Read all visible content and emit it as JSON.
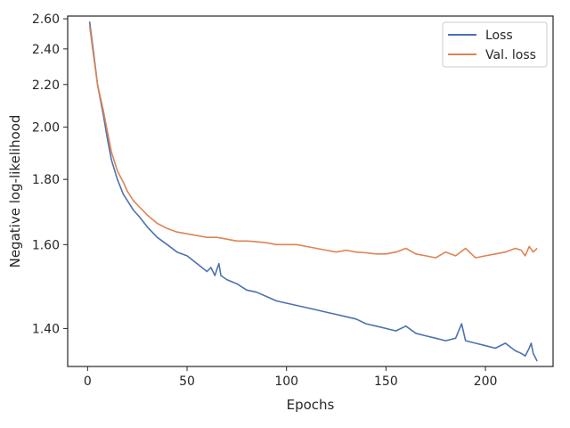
{
  "chart_data": {
    "type": "line",
    "xlabel": "Epochs",
    "ylabel": "Negative log-likelihood",
    "y_scale": "reciprocal",
    "xlim": [
      -10,
      234
    ],
    "ylim": [
      1.325,
      2.62
    ],
    "x_ticks": [
      {
        "value": 0,
        "label": "0"
      },
      {
        "value": 50,
        "label": "50"
      },
      {
        "value": 100,
        "label": "100"
      },
      {
        "value": 150,
        "label": "150"
      },
      {
        "value": 200,
        "label": "200"
      }
    ],
    "y_ticks": [
      {
        "value": 1.4,
        "label": "1.40"
      },
      {
        "value": 1.6,
        "label": "1.60"
      },
      {
        "value": 1.8,
        "label": "1.80"
      },
      {
        "value": 2.0,
        "label": "2.00"
      },
      {
        "value": 2.2,
        "label": "2.20"
      },
      {
        "value": 2.4,
        "label": "2.40"
      },
      {
        "value": 2.6,
        "label": "2.60"
      }
    ],
    "grid": false,
    "legend_position": "top-right",
    "colors": {
      "loss": "#4c72b0",
      "val_loss": "#dd8452",
      "axes": "#262626"
    },
    "series": [
      {
        "name": "Loss",
        "color": "#4c72b0",
        "x": [
          1,
          3,
          5,
          8,
          10,
          12,
          15,
          18,
          20,
          23,
          26,
          30,
          35,
          40,
          45,
          50,
          55,
          60,
          62,
          64,
          65,
          66,
          67,
          70,
          75,
          80,
          85,
          90,
          95,
          100,
          105,
          110,
          115,
          120,
          125,
          130,
          135,
          140,
          145,
          150,
          155,
          160,
          165,
          170,
          175,
          180,
          185,
          188,
          190,
          195,
          200,
          205,
          210,
          215,
          218,
          220,
          222,
          223,
          224,
          226
        ],
        "y": [
          2.58,
          2.38,
          2.2,
          2.05,
          1.95,
          1.87,
          1.8,
          1.75,
          1.73,
          1.7,
          1.68,
          1.65,
          1.62,
          1.6,
          1.58,
          1.57,
          1.55,
          1.53,
          1.54,
          1.52,
          1.535,
          1.55,
          1.52,
          1.51,
          1.5,
          1.485,
          1.48,
          1.47,
          1.46,
          1.455,
          1.45,
          1.445,
          1.44,
          1.435,
          1.43,
          1.425,
          1.42,
          1.41,
          1.405,
          1.4,
          1.395,
          1.405,
          1.39,
          1.385,
          1.38,
          1.375,
          1.38,
          1.41,
          1.375,
          1.37,
          1.365,
          1.36,
          1.37,
          1.355,
          1.35,
          1.345,
          1.36,
          1.37,
          1.35,
          1.335
        ]
      },
      {
        "name": "Val. loss",
        "color": "#dd8452",
        "x": [
          1,
          3,
          5,
          8,
          10,
          12,
          15,
          18,
          20,
          23,
          26,
          30,
          35,
          40,
          45,
          50,
          55,
          60,
          65,
          70,
          75,
          80,
          85,
          90,
          95,
          100,
          105,
          110,
          115,
          120,
          125,
          130,
          135,
          140,
          145,
          150,
          155,
          160,
          165,
          170,
          175,
          180,
          185,
          190,
          195,
          200,
          205,
          210,
          215,
          218,
          220,
          222,
          224,
          226
        ],
        "y": [
          2.55,
          2.36,
          2.2,
          2.07,
          1.98,
          1.9,
          1.83,
          1.79,
          1.76,
          1.73,
          1.71,
          1.685,
          1.66,
          1.645,
          1.635,
          1.63,
          1.625,
          1.62,
          1.62,
          1.615,
          1.61,
          1.61,
          1.608,
          1.605,
          1.6,
          1.6,
          1.6,
          1.595,
          1.59,
          1.585,
          1.58,
          1.585,
          1.58,
          1.578,
          1.575,
          1.575,
          1.58,
          1.59,
          1.575,
          1.57,
          1.565,
          1.58,
          1.57,
          1.59,
          1.565,
          1.57,
          1.575,
          1.58,
          1.59,
          1.585,
          1.57,
          1.595,
          1.58,
          1.59
        ]
      }
    ]
  }
}
